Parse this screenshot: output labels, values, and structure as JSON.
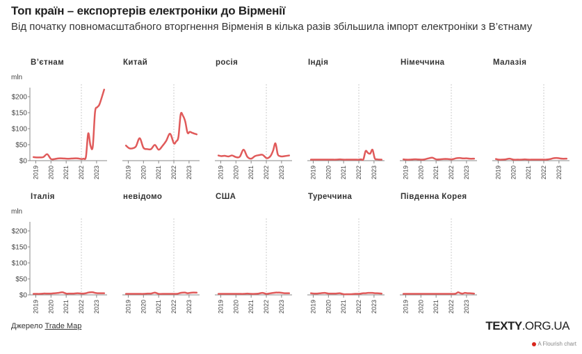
{
  "header": {
    "title": "Топ країн – експортерів електроніки до Вірменії",
    "subtitle": "Від початку повномасштабного вторгнення Вірменія в кілька разів збільшила імпорт електроніки з В’єтнаму"
  },
  "footer": {
    "source_prefix": "Джерело",
    "source_link": "Trade Map",
    "logo_bold": "TEXTY",
    "logo_rest": ".ORG.UA",
    "flourish_label": "A Flourish chart"
  },
  "colors": {
    "line": "#e05a5a",
    "axis": "#888888",
    "reference_line": "#cccccc"
  },
  "chart_data": {
    "type": "line",
    "title": "Топ країн – експортерів електроніки до Вірменії",
    "ylabel": "mln",
    "ylim": [
      0,
      230
    ],
    "yticks": [
      0,
      50,
      100,
      150,
      200
    ],
    "ytick_labels": [
      "$0",
      "$50",
      "$100",
      "$150",
      "$200"
    ],
    "xticks": [
      2019,
      2020,
      2021,
      2022,
      2023
    ],
    "xtick_labels": [
      "2019",
      "2020",
      "2021",
      "2022",
      "2023"
    ],
    "xlim": [
      2018.75,
      2023.6
    ],
    "reference_x": 2022,
    "grid": false,
    "x": [
      2018.85,
      2019.05,
      2019.25,
      2019.5,
      2019.75,
      2020.0,
      2020.25,
      2020.5,
      2020.75,
      2021.0,
      2021.25,
      2021.5,
      2021.75,
      2022.0,
      2022.15,
      2022.3,
      2022.45,
      2022.6,
      2022.75,
      2022.9,
      2023.05,
      2023.2,
      2023.5
    ],
    "series": [
      {
        "name": "В’єтнам",
        "values": [
          9,
          8,
          8,
          9,
          18,
          3,
          3,
          5,
          5,
          4,
          4,
          5,
          5,
          3,
          4,
          10,
          83,
          45,
          42,
          150,
          165,
          175,
          220
        ]
      },
      {
        "name": "Китай",
        "values": [
          45,
          37,
          36,
          42,
          68,
          38,
          34,
          34,
          47,
          32,
          44,
          60,
          82,
          52,
          58,
          72,
          143,
          138,
          120,
          85,
          88,
          85,
          80
        ]
      },
      {
        "name": "росія",
        "values": [
          14,
          12,
          13,
          11,
          14,
          9,
          10,
          32,
          10,
          4,
          12,
          15,
          16,
          6,
          7,
          14,
          30,
          52,
          18,
          12,
          11,
          12,
          14
        ]
      },
      {
        "name": "Індія",
        "values": [
          1,
          1,
          1,
          1,
          1,
          1,
          1,
          1,
          2,
          1,
          1,
          1,
          1,
          1,
          2,
          2,
          28,
          22,
          20,
          32,
          5,
          2,
          1
        ]
      },
      {
        "name": "Німеччина",
        "values": [
          2,
          1,
          1,
          2,
          2,
          1,
          2,
          5,
          7,
          2,
          2,
          3,
          3,
          2,
          3,
          5,
          6,
          6,
          5,
          5,
          5,
          4,
          4
        ]
      },
      {
        "name": "Малазія",
        "values": [
          3,
          1,
          1,
          2,
          4,
          1,
          1,
          1,
          2,
          1,
          1,
          1,
          1,
          1,
          1,
          2,
          3,
          5,
          6,
          6,
          5,
          4,
          4
        ]
      },
      {
        "name": "Італія",
        "values": [
          1,
          1,
          1,
          2,
          2,
          2,
          3,
          4,
          6,
          2,
          2,
          2,
          3,
          2,
          2,
          3,
          5,
          6,
          6,
          4,
          3,
          3,
          3
        ]
      },
      {
        "name": "невідомо",
        "values": [
          1,
          1,
          1,
          1,
          1,
          1,
          2,
          2,
          5,
          1,
          1,
          1,
          1,
          1,
          1,
          2,
          4,
          5,
          5,
          3,
          4,
          5,
          5
        ]
      },
      {
        "name": "США",
        "values": [
          1,
          1,
          1,
          1,
          1,
          1,
          1,
          1,
          2,
          1,
          1,
          2,
          4,
          1,
          2,
          3,
          4,
          5,
          5,
          5,
          4,
          3,
          3
        ]
      },
      {
        "name": "Туреччина",
        "values": [
          3,
          2,
          2,
          3,
          4,
          2,
          2,
          2,
          3,
          0,
          0,
          0,
          1,
          1,
          2,
          3,
          3,
          4,
          4,
          4,
          3,
          3,
          2
        ]
      },
      {
        "name": "Південна Корея",
        "values": [
          1,
          1,
          1,
          1,
          1,
          1,
          1,
          1,
          1,
          1,
          1,
          1,
          1,
          1,
          1,
          2,
          6,
          3,
          2,
          4,
          3,
          3,
          2
        ]
      }
    ],
    "legend": "none"
  }
}
